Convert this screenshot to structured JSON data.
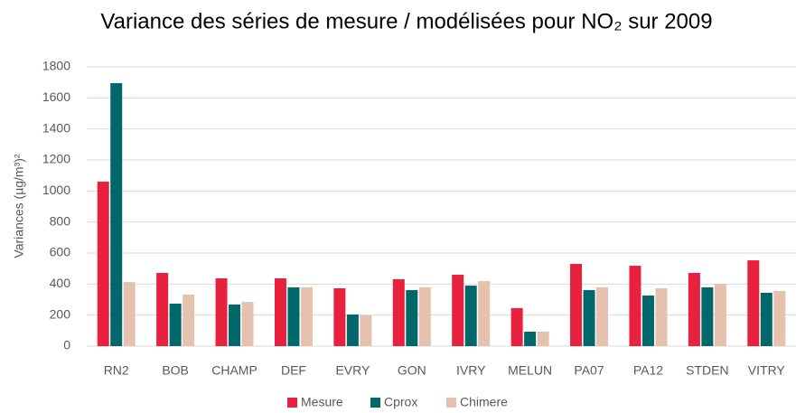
{
  "chart_data": {
    "type": "bar",
    "title": "Variance des séries de mesure / modélisées pour NO₂ sur 2009",
    "y_label": "Variances (µg/m³)²",
    "categories": [
      "RN2",
      "BOB",
      "CHAMP",
      "DEF",
      "EVRY",
      "GON",
      "IVRY",
      "MELUN",
      "PA07",
      "PA12",
      "STDEN",
      "VITRY"
    ],
    "series": [
      {
        "name": "Mesure",
        "color": "#e8213f",
        "values": [
          1060,
          472,
          437,
          437,
          373,
          431,
          460,
          245,
          530,
          518,
          472,
          553
        ]
      },
      {
        "name": "Cprox",
        "color": "#00676b",
        "values": [
          1695,
          274,
          268,
          379,
          204,
          361,
          390,
          93,
          361,
          326,
          379,
          344
        ]
      },
      {
        "name": "Chimere",
        "color": "#e6c1ad",
        "values": [
          413,
          332,
          285,
          379,
          198,
          379,
          419,
          93,
          379,
          373,
          402,
          355
        ]
      }
    ],
    "ylim": [
      0,
      1800
    ],
    "yticks": [
      0,
      200,
      400,
      600,
      800,
      1000,
      1200,
      1400,
      1600,
      1800
    ],
    "grid": true,
    "legend": "bottom"
  }
}
